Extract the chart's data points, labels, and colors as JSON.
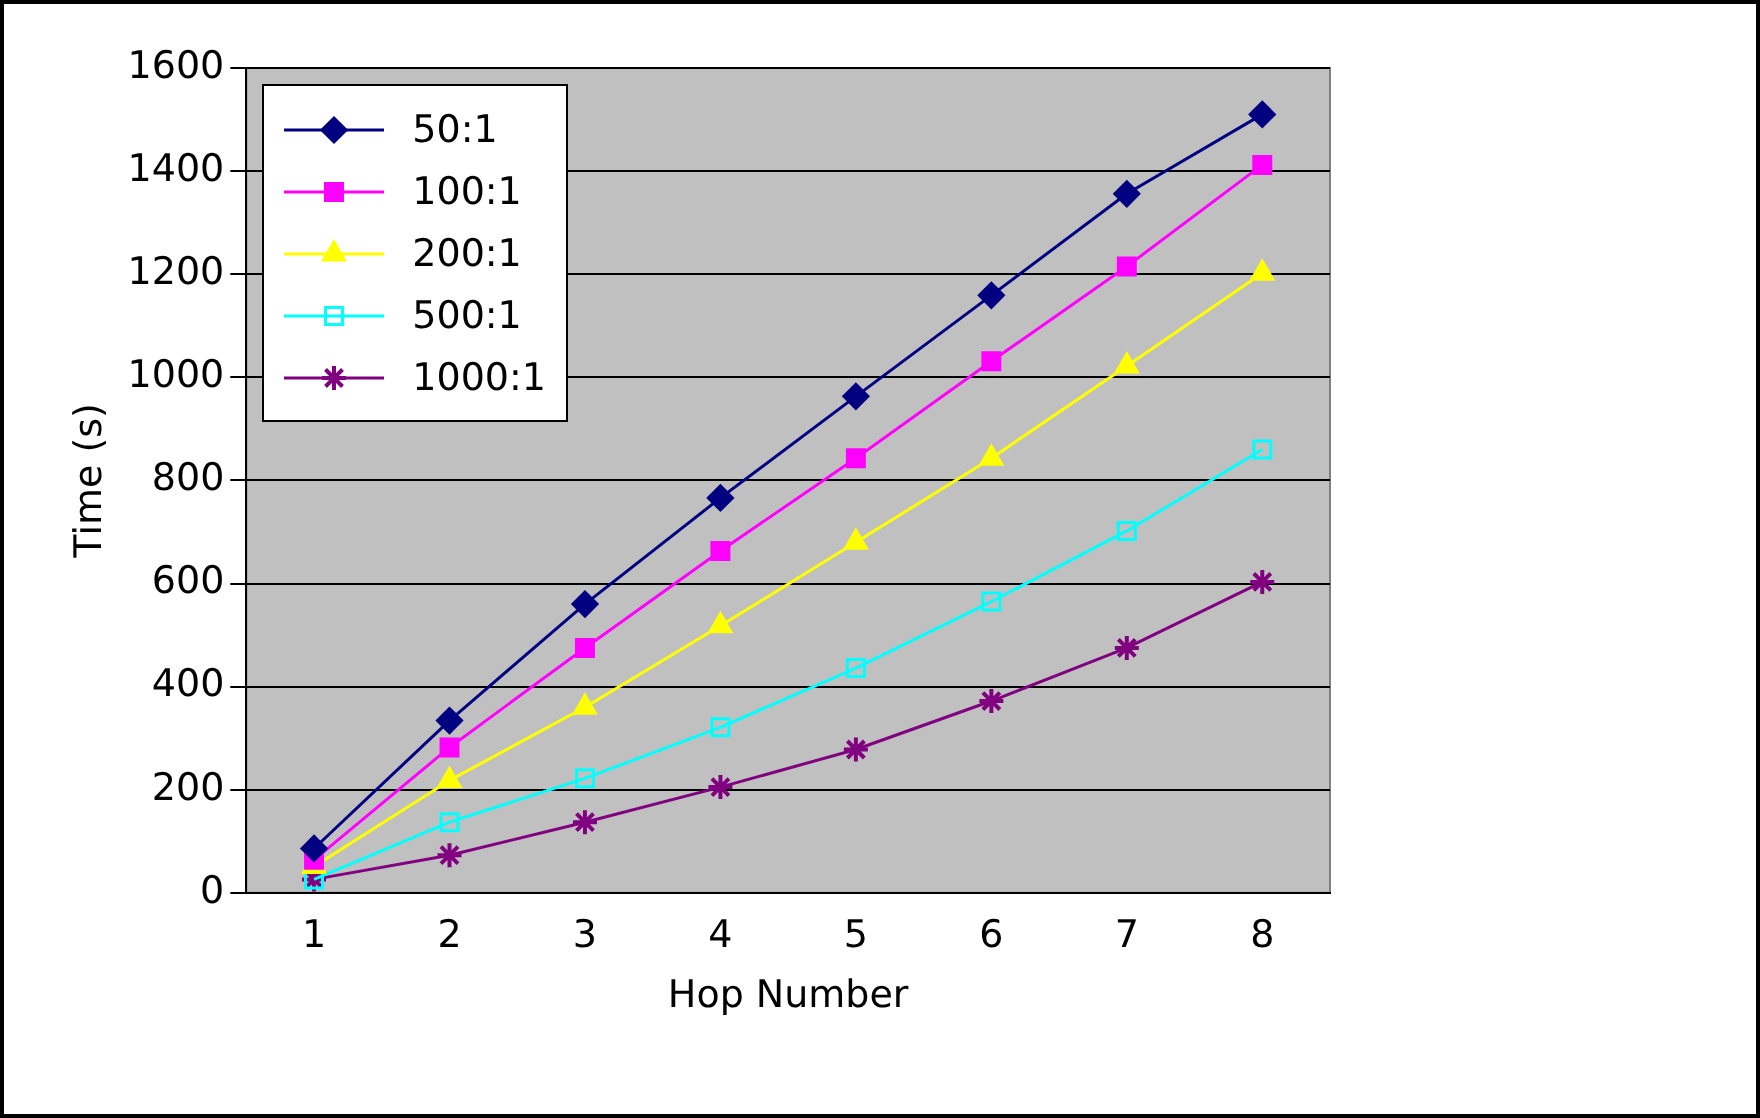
{
  "chart_data": {
    "type": "line",
    "xlabel": "Hop Number",
    "ylabel": "Time (s)",
    "categories": [
      "1",
      "2",
      "3",
      "4",
      "5",
      "6",
      "7",
      "8"
    ],
    "ylim": [
      0,
      1600
    ],
    "yticks": [
      0,
      200,
      400,
      600,
      800,
      1000,
      1200,
      1400,
      1600
    ],
    "grid": "y",
    "legend": "top left",
    "series": [
      {
        "name": "50:1",
        "color": "#000080",
        "marker": "diamond",
        "values": [
          86,
          334,
          560,
          766,
          963,
          1159,
          1356,
          1510
        ]
      },
      {
        "name": "100:1",
        "color": "#ff00ff",
        "marker": "square",
        "values": [
          64,
          282,
          475,
          663,
          843,
          1031,
          1215,
          1412
        ]
      },
      {
        "name": "200:1",
        "color": "#ffff00",
        "marker": "triangle",
        "values": [
          51,
          218,
          360,
          518,
          680,
          843,
          1022,
          1202
        ]
      },
      {
        "name": "500:1",
        "color": "#00ffff",
        "marker": "square",
        "values": [
          26,
          137,
          222,
          321,
          436,
          565,
          702,
          860
        ]
      },
      {
        "name": "1000:1",
        "color": "#800080",
        "marker": "cross",
        "values": [
          26,
          73,
          137,
          205,
          278,
          372,
          475,
          603
        ]
      }
    ]
  }
}
